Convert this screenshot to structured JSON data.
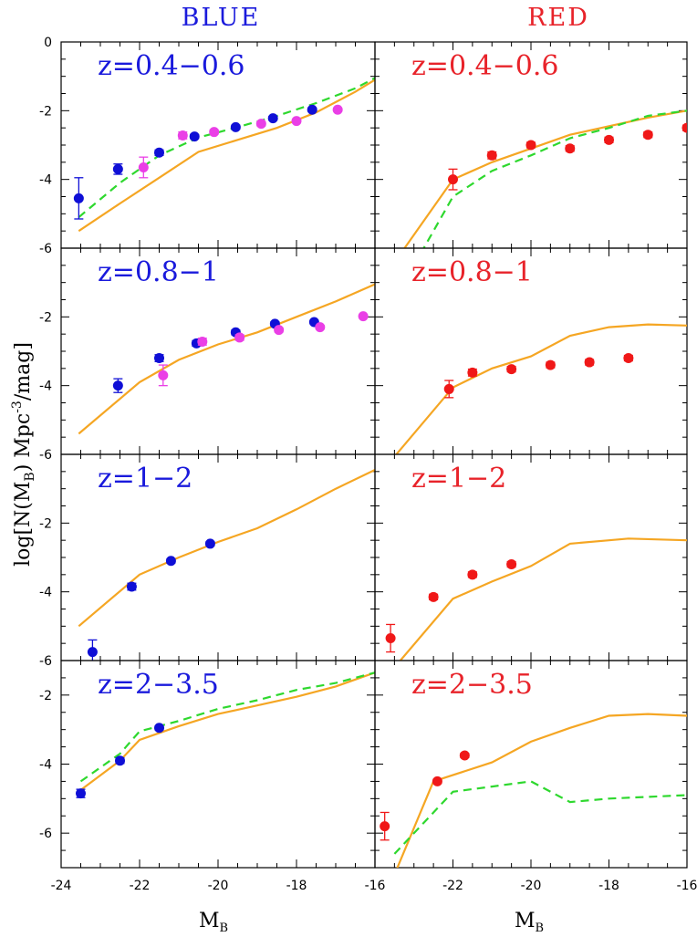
{
  "figure": {
    "column_titles": [
      {
        "text": "BLUE",
        "color": "#1a1adc"
      },
      {
        "text": "RED",
        "color": "#e8232a"
      }
    ],
    "ylabel": {
      "prefix": "log[N(M",
      "sub": "B",
      "mid": ") Mpc",
      "sup": "-3",
      "suffix": "/mag]"
    },
    "xlabel": {
      "main": "M",
      "sub": "B"
    }
  },
  "chart_data": [
    {
      "type": "scatter",
      "column": "BLUE",
      "label": "z=0.4−0.6",
      "xlim": [
        -24,
        -16
      ],
      "ylim": [
        -6,
        0
      ],
      "x_ticks": [
        -24,
        -22,
        -20,
        -18,
        -16
      ],
      "y_ticks": [
        -6,
        -4,
        -2,
        0
      ],
      "series": [
        {
          "kind": "points",
          "color": "#0f0fd6",
          "points": [
            {
              "x": -23.55,
              "y": -4.55,
              "err": 0.6
            },
            {
              "x": -22.55,
              "y": -3.7,
              "err": 0.15
            },
            {
              "x": -21.5,
              "y": -3.22,
              "err": 0.08
            },
            {
              "x": -20.6,
              "y": -2.75,
              "err": 0.06
            },
            {
              "x": -19.55,
              "y": -2.48,
              "err": 0.06
            },
            {
              "x": -18.6,
              "y": -2.22,
              "err": 0.05
            },
            {
              "x": -17.6,
              "y": -1.97,
              "err": 0.05
            }
          ]
        },
        {
          "kind": "points",
          "color": "#ea3fe6",
          "points": [
            {
              "x": -21.9,
              "y": -3.65,
              "err": 0.3
            },
            {
              "x": -20.9,
              "y": -2.72,
              "err": 0.1
            },
            {
              "x": -20.1,
              "y": -2.62,
              "err": 0.06
            },
            {
              "x": -18.9,
              "y": -2.38,
              "err": 0.06
            },
            {
              "x": -18.0,
              "y": -2.3,
              "err": 0.05
            },
            {
              "x": -16.95,
              "y": -1.97,
              "err": 0.04
            }
          ]
        },
        {
          "kind": "line",
          "color": "#f5a623",
          "dash": false,
          "points": [
            [
              -23.55,
              -5.5
            ],
            [
              -22.5,
              -4.7
            ],
            [
              -21.5,
              -3.95
            ],
            [
              -20.5,
              -3.2
            ],
            [
              -19.5,
              -2.85
            ],
            [
              -18.5,
              -2.5
            ],
            [
              -17.5,
              -2.05
            ],
            [
              -16.5,
              -1.45
            ],
            [
              -16.0,
              -1.1
            ]
          ]
        },
        {
          "kind": "line",
          "color": "#2ed82e",
          "dash": true,
          "points": [
            [
              -23.55,
              -5.1
            ],
            [
              -22.5,
              -4.1
            ],
            [
              -21.5,
              -3.3
            ],
            [
              -20.5,
              -2.78
            ],
            [
              -19.5,
              -2.48
            ],
            [
              -18.5,
              -2.15
            ],
            [
              -17.5,
              -1.78
            ],
            [
              -16.5,
              -1.35
            ],
            [
              -16.0,
              -1.05
            ]
          ]
        }
      ]
    },
    {
      "type": "scatter",
      "column": "RED",
      "label": "z=0.4−0.6",
      "xlim": [
        -24,
        -16
      ],
      "ylim": [
        -6,
        0
      ],
      "x_ticks": [
        -24,
        -22,
        -20,
        -18,
        -16
      ],
      "y_ticks": [
        -6,
        -4,
        -2,
        0
      ],
      "series": [
        {
          "kind": "points",
          "color": "#f01818",
          "points": [
            {
              "x": -22.0,
              "y": -4.0,
              "err": 0.3
            },
            {
              "x": -21.0,
              "y": -3.3,
              "err": 0.1
            },
            {
              "x": -20.0,
              "y": -3.0,
              "err": 0.08
            },
            {
              "x": -19.0,
              "y": -3.1,
              "err": 0.08
            },
            {
              "x": -18.0,
              "y": -2.85,
              "err": 0.08
            },
            {
              "x": -17.0,
              "y": -2.7,
              "err": 0.08
            },
            {
              "x": -16.0,
              "y": -2.5,
              "err": 0.08
            }
          ]
        },
        {
          "kind": "line",
          "color": "#f5a623",
          "dash": false,
          "points": [
            [
              -23.55,
              -6.5
            ],
            [
              -22.0,
              -4.0
            ],
            [
              -21.0,
              -3.5
            ],
            [
              -20.0,
              -3.1
            ],
            [
              -19.0,
              -2.7
            ],
            [
              -18.0,
              -2.45
            ],
            [
              -17.0,
              -2.2
            ],
            [
              -16.0,
              -2.0
            ]
          ]
        },
        {
          "kind": "line",
          "color": "#2ed82e",
          "dash": true,
          "points": [
            [
              -23.0,
              -6.5
            ],
            [
              -22.0,
              -4.5
            ],
            [
              -21.0,
              -3.75
            ],
            [
              -20.0,
              -3.3
            ],
            [
              -19.0,
              -2.8
            ],
            [
              -18.0,
              -2.5
            ],
            [
              -17.0,
              -2.15
            ],
            [
              -16.0,
              -2.0
            ]
          ]
        }
      ]
    },
    {
      "type": "scatter",
      "column": "BLUE",
      "label": "z=0.8−1",
      "xlim": [
        -24,
        -16
      ],
      "ylim": [
        -6,
        0
      ],
      "x_ticks": [
        -24,
        -22,
        -20,
        -18,
        -16
      ],
      "y_ticks": [
        -6,
        -4,
        -2
      ],
      "series": [
        {
          "kind": "points",
          "color": "#0f0fd6",
          "points": [
            {
              "x": -22.55,
              "y": -4.0,
              "err": 0.2
            },
            {
              "x": -21.5,
              "y": -3.2,
              "err": 0.1
            },
            {
              "x": -20.55,
              "y": -2.77,
              "err": 0.08
            },
            {
              "x": -19.55,
              "y": -2.45,
              "err": 0.07
            },
            {
              "x": -18.55,
              "y": -2.2,
              "err": 0.06
            },
            {
              "x": -17.55,
              "y": -2.15,
              "err": 0.05
            }
          ]
        },
        {
          "kind": "points",
          "color": "#ea3fe6",
          "points": [
            {
              "x": -21.4,
              "y": -3.7,
              "err": 0.3
            },
            {
              "x": -20.4,
              "y": -2.72,
              "err": 0.1
            },
            {
              "x": -19.45,
              "y": -2.6,
              "err": 0.08
            },
            {
              "x": -18.45,
              "y": -2.38,
              "err": 0.06
            },
            {
              "x": -17.4,
              "y": -2.3,
              "err": 0.05
            },
            {
              "x": -16.3,
              "y": -1.98,
              "err": 0.04
            }
          ]
        },
        {
          "kind": "line",
          "color": "#f5a623",
          "dash": false,
          "points": [
            [
              -23.55,
              -5.4
            ],
            [
              -22.0,
              -3.9
            ],
            [
              -21.0,
              -3.25
            ],
            [
              -20.0,
              -2.8
            ],
            [
              -19.0,
              -2.45
            ],
            [
              -18.0,
              -2.0
            ],
            [
              -17.0,
              -1.55
            ],
            [
              -16.0,
              -1.05
            ]
          ]
        }
      ]
    },
    {
      "type": "scatter",
      "column": "RED",
      "label": "z=0.8−1",
      "xlim": [
        -24,
        -16
      ],
      "ylim": [
        -6,
        0
      ],
      "x_ticks": [
        -24,
        -22,
        -20,
        -18,
        -16
      ],
      "y_ticks": [
        -6,
        -4,
        -2
      ],
      "series": [
        {
          "kind": "points",
          "color": "#f01818",
          "points": [
            {
              "x": -22.1,
              "y": -4.1,
              "err": 0.25
            },
            {
              "x": -21.5,
              "y": -3.62,
              "err": 0.1
            },
            {
              "x": -20.5,
              "y": -3.52,
              "err": 0.08
            },
            {
              "x": -19.5,
              "y": -3.4,
              "err": 0.08
            },
            {
              "x": -18.5,
              "y": -3.32,
              "err": 0.08
            },
            {
              "x": -17.5,
              "y": -3.2,
              "err": 0.08
            }
          ]
        },
        {
          "kind": "line",
          "color": "#f5a623",
          "dash": false,
          "points": [
            [
              -23.6,
              -6.2
            ],
            [
              -22.0,
              -4.05
            ],
            [
              -21.0,
              -3.5
            ],
            [
              -20.0,
              -3.15
            ],
            [
              -19.0,
              -2.55
            ],
            [
              -18.0,
              -2.3
            ],
            [
              -17.0,
              -2.22
            ],
            [
              -16.0,
              -2.25
            ]
          ]
        }
      ]
    },
    {
      "type": "scatter",
      "column": "BLUE",
      "label": "z=1−2",
      "xlim": [
        -24,
        -16
      ],
      "ylim": [
        -6,
        0
      ],
      "x_ticks": [
        -24,
        -22,
        -20,
        -18,
        -16
      ],
      "y_ticks": [
        -6,
        -4,
        -2
      ],
      "series": [
        {
          "kind": "points",
          "color": "#0f0fd6",
          "points": [
            {
              "x": -23.2,
              "y": -5.75,
              "err": 0.35
            },
            {
              "x": -22.2,
              "y": -3.85,
              "err": 0.1
            },
            {
              "x": -21.2,
              "y": -3.1,
              "err": 0.06
            },
            {
              "x": -20.2,
              "y": -2.6,
              "err": 0.06
            }
          ]
        },
        {
          "kind": "line",
          "color": "#f5a623",
          "dash": false,
          "points": [
            [
              -23.55,
              -5.0
            ],
            [
              -22.0,
              -3.5
            ],
            [
              -21.0,
              -3.0
            ],
            [
              -20.0,
              -2.55
            ],
            [
              -19.0,
              -2.15
            ],
            [
              -18.0,
              -1.6
            ],
            [
              -17.0,
              -1.0
            ],
            [
              -16.0,
              -0.45
            ]
          ]
        }
      ]
    },
    {
      "type": "scatter",
      "column": "RED",
      "label": "z=1−2",
      "xlim": [
        -24,
        -16
      ],
      "ylim": [
        -6,
        0
      ],
      "x_ticks": [
        -24,
        -22,
        -20,
        -18,
        -16
      ],
      "y_ticks": [
        -6,
        -4,
        -2
      ],
      "series": [
        {
          "kind": "points",
          "color": "#f01818",
          "points": [
            {
              "x": -23.6,
              "y": -5.35,
              "err": 0.4
            },
            {
              "x": -22.5,
              "y": -4.15,
              "err": 0.08
            },
            {
              "x": -21.5,
              "y": -3.5,
              "err": 0.08
            },
            {
              "x": -20.5,
              "y": -3.2,
              "err": 0.08
            }
          ]
        },
        {
          "kind": "line",
          "color": "#f5a623",
          "dash": false,
          "points": [
            [
              -23.35,
              -6.0
            ],
            [
              -22.0,
              -4.2
            ],
            [
              -21.0,
              -3.7
            ],
            [
              -20.0,
              -3.25
            ],
            [
              -19.0,
              -2.6
            ],
            [
              -18.0,
              -2.5
            ],
            [
              -17.5,
              -2.45
            ],
            [
              -16.0,
              -2.5
            ]
          ]
        }
      ]
    },
    {
      "type": "scatter",
      "column": "BLUE",
      "label": "z=2−3.5",
      "xlim": [
        -24,
        -16
      ],
      "ylim": [
        -7,
        -1
      ],
      "x_ticks": [
        -24,
        -22,
        -20,
        -18,
        -16
      ],
      "y_ticks": [
        -6,
        -4,
        -2
      ],
      "series": [
        {
          "kind": "points",
          "color": "#0f0fd6",
          "points": [
            {
              "x": -23.5,
              "y": -4.85,
              "err": 0.12
            },
            {
              "x": -22.5,
              "y": -3.9,
              "err": 0.08
            },
            {
              "x": -21.5,
              "y": -2.95,
              "err": 0.06
            }
          ]
        },
        {
          "kind": "line",
          "color": "#f5a623",
          "dash": false,
          "points": [
            [
              -23.5,
              -4.75
            ],
            [
              -22.5,
              -3.9
            ],
            [
              -22.0,
              -3.3
            ],
            [
              -21.0,
              -2.9
            ],
            [
              -20.0,
              -2.55
            ],
            [
              -19.0,
              -2.3
            ],
            [
              -18.0,
              -2.05
            ],
            [
              -17.0,
              -1.75
            ],
            [
              -16.0,
              -1.35
            ]
          ]
        },
        {
          "kind": "line",
          "color": "#2ed82e",
          "dash": true,
          "points": [
            [
              -23.5,
              -4.5
            ],
            [
              -22.5,
              -3.7
            ],
            [
              -22.0,
              -3.05
            ],
            [
              -21.0,
              -2.75
            ],
            [
              -20.0,
              -2.4
            ],
            [
              -19.0,
              -2.15
            ],
            [
              -18.0,
              -1.85
            ],
            [
              -17.0,
              -1.65
            ],
            [
              -16.0,
              -1.35
            ]
          ]
        }
      ]
    },
    {
      "type": "scatter",
      "column": "RED",
      "label": "z=2−3.5",
      "xlim": [
        -24,
        -16
      ],
      "ylim": [
        -7,
        -1
      ],
      "x_ticks": [
        -24,
        -22,
        -20,
        -18,
        -16
      ],
      "y_ticks": [
        -6,
        -4,
        -2
      ],
      "series": [
        {
          "kind": "points",
          "color": "#f01818",
          "points": [
            {
              "x": -23.75,
              "y": -5.8,
              "err": 0.4
            },
            {
              "x": -22.4,
              "y": -4.5,
              "err": 0.06
            },
            {
              "x": -21.7,
              "y": -3.75,
              "err": 0.06
            }
          ]
        },
        {
          "kind": "line",
          "color": "#f5a623",
          "dash": false,
          "points": [
            [
              -23.5,
              -7.2
            ],
            [
              -22.5,
              -4.5
            ],
            [
              -21.0,
              -3.95
            ],
            [
              -20.0,
              -3.35
            ],
            [
              -19.0,
              -2.95
            ],
            [
              -18.0,
              -2.6
            ],
            [
              -17.0,
              -2.55
            ],
            [
              -16.0,
              -2.6
            ]
          ]
        },
        {
          "kind": "line",
          "color": "#2ed82e",
          "dash": true,
          "points": [
            [
              -23.5,
              -6.6
            ],
            [
              -22.0,
              -4.8
            ],
            [
              -21.0,
              -4.65
            ],
            [
              -20.0,
              -4.5
            ],
            [
              -19.0,
              -5.1
            ],
            [
              -18.0,
              -5.0
            ],
            [
              -17.0,
              -4.95
            ],
            [
              -16.0,
              -4.9
            ]
          ]
        }
      ]
    }
  ]
}
